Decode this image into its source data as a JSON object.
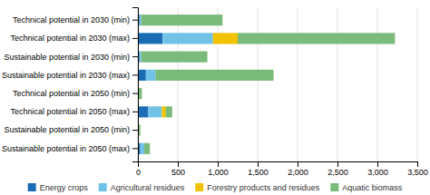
{
  "chart_data": {
    "type": "bar",
    "orientation": "horizontal",
    "stacked": true,
    "categories": [
      "Technical potential in 2030 (min)",
      "Technical potential in 2030 (max)",
      "Sustainable potential in 2030 (min)",
      "Sustainable potential in 2030 (max)",
      "Technical potential in 2050 (min)",
      "Technical potential in 2050 (max)",
      "Sustainable potential in 2050 (min)",
      "Sustainable potential in 2050 (max)"
    ],
    "series": [
      {
        "name": "Energy crops",
        "color": "#1a6db5",
        "values": [
          20,
          310,
          20,
          100,
          0,
          130,
          0,
          30
        ]
      },
      {
        "name": "Agricultural residues",
        "color": "#70c2e7",
        "values": [
          20,
          630,
          20,
          120,
          0,
          170,
          0,
          50
        ]
      },
      {
        "name": "Forestry products and residues",
        "color": "#f0c200",
        "values": [
          0,
          310,
          0,
          0,
          0,
          50,
          0,
          0
        ]
      },
      {
        "name": "Aquatic biomass",
        "color": "#7aba7a",
        "values": [
          1020,
          1970,
          830,
          1480,
          50,
          80,
          30,
          70
        ]
      }
    ],
    "xlim": [
      0,
      3500
    ],
    "xticks": [
      0,
      500,
      {
        "value": 1000,
        "label": "1,000"
      },
      {
        "value": 1500,
        "label": "1,500"
      },
      {
        "value": 2000,
        "label": "2,000"
      },
      {
        "value": 2500,
        "label": "2,500"
      },
      {
        "value": 3000,
        "label": "3,000"
      },
      {
        "value": 3500,
        "label": "3,500"
      }
    ],
    "grid": true,
    "legend": "bottom"
  }
}
